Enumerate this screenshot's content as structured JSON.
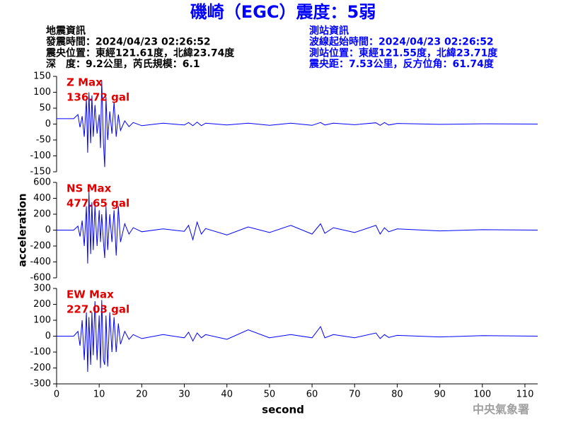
{
  "header": {
    "title": "磯崎（EGC）震度：5弱",
    "left_lines": [
      "地震資訊",
      "發震時間：2024/04/23 02:26:52",
      "震央位置：東經121.61度，北緯23.74度",
      "深　度：9.2公里，芮氏規模：6.1"
    ],
    "right_lines": [
      "測站資訊",
      "波線起始時間：2024/04/23 02:26:52",
      "測站位置：東經121.55度，北緯23.71度",
      "震央距：7.53公里，反方位角：61.74度"
    ]
  },
  "footer": "中央氣象署",
  "chart_data": [
    {
      "type": "line",
      "annotation": [
        "Z Max",
        "136.72 gal"
      ],
      "color": "#0000ff",
      "xlim": [
        0,
        113
      ],
      "ylim": [
        -150,
        150
      ],
      "yticks": [
        150,
        100,
        50,
        0,
        -50,
        -100,
        -150
      ],
      "x": [
        0,
        4,
        5,
        5.5,
        6,
        6.5,
        7,
        7.3,
        7.6,
        8,
        8.3,
        8.6,
        9,
        9.5,
        10,
        10.3,
        10.6,
        11,
        11.3,
        11.6,
        12,
        12.5,
        13,
        13.5,
        14,
        14.5,
        15,
        16,
        17,
        18,
        20,
        25,
        30,
        31,
        32,
        33,
        34,
        35,
        40,
        45,
        50,
        55,
        60,
        62,
        63,
        65,
        70,
        75,
        76,
        77,
        78,
        80,
        90,
        100,
        113
      ],
      "values": [
        17,
        17,
        30,
        -10,
        25,
        -40,
        80,
        -90,
        100,
        -60,
        90,
        -40,
        60,
        -30,
        30,
        -75,
        137,
        -60,
        -135,
        85,
        -50,
        40,
        -30,
        70,
        -40,
        30,
        -20,
        10,
        -8,
        5,
        -5,
        3,
        -3,
        5,
        -5,
        6,
        -5,
        3,
        -3,
        3,
        -4,
        3,
        -4,
        5,
        -3,
        3,
        -2,
        4,
        -4,
        5,
        -3,
        2,
        -1,
        1,
        0
      ]
    },
    {
      "type": "line",
      "annotation": [
        "NS Max",
        "477.65 gal"
      ],
      "color": "#0000ff",
      "ylabel": "acceleration",
      "xlim": [
        0,
        113
      ],
      "ylim": [
        -600,
        600
      ],
      "yticks": [
        600,
        400,
        200,
        0,
        -200,
        -400,
        -600
      ],
      "x": [
        0,
        4,
        5,
        5.5,
        6,
        6.5,
        7,
        7.3,
        7.6,
        8,
        8.3,
        8.6,
        9,
        9.5,
        10,
        10.3,
        10.6,
        11,
        11.3,
        11.6,
        12,
        12.5,
        13,
        13.5,
        14,
        14.5,
        15,
        16,
        17,
        18,
        20,
        25,
        30,
        31,
        32,
        33,
        34,
        35,
        40,
        45,
        50,
        55,
        60,
        62,
        63,
        65,
        70,
        75,
        76,
        77,
        78,
        80,
        90,
        100,
        113
      ],
      "values": [
        0,
        0,
        50,
        -80,
        120,
        -200,
        300,
        -420,
        478,
        -300,
        350,
        -250,
        300,
        -200,
        250,
        -150,
        200,
        -150,
        -350,
        300,
        -250,
        200,
        -150,
        250,
        -320,
        300,
        -150,
        80,
        -50,
        30,
        -20,
        15,
        -15,
        60,
        -120,
        100,
        -50,
        20,
        -60,
        40,
        -30,
        60,
        -50,
        80,
        -40,
        30,
        -30,
        60,
        -50,
        30,
        -20,
        15,
        -10,
        5,
        0
      ]
    },
    {
      "type": "line",
      "annotation": [
        "EW Max",
        "227.03 gal"
      ],
      "color": "#0000ff",
      "xlabel": "second",
      "xlim": [
        0,
        113
      ],
      "xticks": [
        0,
        10,
        20,
        30,
        40,
        50,
        60,
        70,
        80,
        90,
        100,
        110
      ],
      "ylim": [
        -300,
        300
      ],
      "yticks": [
        300,
        200,
        100,
        0,
        -100,
        -200,
        -300
      ],
      "x": [
        0,
        4,
        5,
        5.5,
        6,
        6.5,
        7,
        7.3,
        7.6,
        8,
        8.3,
        8.6,
        9,
        9.5,
        10,
        10.3,
        10.6,
        11,
        11.3,
        11.6,
        12,
        12.5,
        13,
        13.5,
        14,
        14.5,
        15,
        16,
        17,
        18,
        20,
        25,
        30,
        31,
        32,
        33,
        34,
        35,
        40,
        45,
        50,
        55,
        60,
        62,
        63,
        65,
        70,
        75,
        76,
        77,
        78,
        80,
        90,
        100,
        113
      ],
      "values": [
        0,
        0,
        30,
        -60,
        100,
        -150,
        150,
        -225,
        120,
        -180,
        150,
        -120,
        220,
        -150,
        130,
        -200,
        227,
        -150,
        -180,
        130,
        -190,
        150,
        -100,
        120,
        -100,
        80,
        -50,
        30,
        -20,
        10,
        -15,
        10,
        -10,
        25,
        -30,
        20,
        -10,
        10,
        -20,
        40,
        -10,
        10,
        -10,
        60,
        -10,
        10,
        -10,
        20,
        -15,
        10,
        -8,
        5,
        -5,
        3,
        0
      ]
    }
  ]
}
